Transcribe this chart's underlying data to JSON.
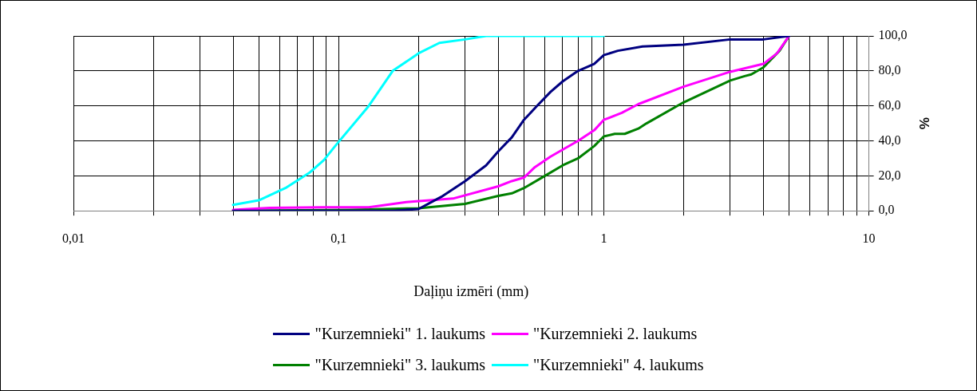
{
  "chart_data": {
    "type": "line",
    "xlabel": "Daļiņu izmēri (mm)",
    "ylabel": "%",
    "log": "x",
    "grid": true,
    "legend": "bottom",
    "marker": "none",
    "line_style": "solid",
    "xlim": [
      0.01,
      10
    ],
    "xticks": [
      {
        "value": 0.01,
        "label": "0,01"
      },
      {
        "value": 0.02,
        "label": null
      },
      {
        "value": 0.03,
        "label": null
      },
      {
        "value": 0.04,
        "label": null
      },
      {
        "value": 0.05,
        "label": null
      },
      {
        "value": 0.06,
        "label": null
      },
      {
        "value": 0.07,
        "label": null
      },
      {
        "value": 0.08,
        "label": null
      },
      {
        "value": 0.09,
        "label": null
      },
      {
        "value": 0.1,
        "label": "0,1"
      },
      {
        "value": 0.2,
        "label": null
      },
      {
        "value": 0.3,
        "label": null
      },
      {
        "value": 0.4,
        "label": null
      },
      {
        "value": 0.5,
        "label": null
      },
      {
        "value": 0.6,
        "label": null
      },
      {
        "value": 0.7,
        "label": null
      },
      {
        "value": 0.8,
        "label": null
      },
      {
        "value": 0.9,
        "label": null
      },
      1,
      {
        "value": 2,
        "label": null
      },
      {
        "value": 3,
        "label": null
      },
      {
        "value": 4,
        "label": null
      },
      {
        "value": 5,
        "label": null
      },
      {
        "value": 6,
        "label": null
      },
      {
        "value": 7,
        "label": null
      },
      {
        "value": 8,
        "label": null
      },
      {
        "value": 9,
        "label": null
      },
      10
    ],
    "ylim": [
      0,
      100
    ],
    "yticks": [
      {
        "value": 0,
        "label": "0,0"
      },
      {
        "value": 20,
        "label": "20,0"
      },
      {
        "value": 40,
        "label": "40,0"
      },
      {
        "value": 60,
        "label": "60,0"
      },
      {
        "value": 80,
        "label": "80,0"
      },
      {
        "value": 100,
        "label": "100,0"
      }
    ],
    "series": [
      {
        "name": "\"Kurzemnieki\" 1. laukums",
        "color": "#000080",
        "x": [
          0.04,
          0.1,
          0.16,
          0.2,
          0.244,
          0.3,
          0.36,
          0.4,
          0.45,
          0.5,
          0.56,
          0.63,
          0.7,
          0.8,
          0.92,
          1,
          1.13,
          1.4,
          2,
          3,
          4,
          5
        ],
        "values": [
          0,
          0,
          0,
          1,
          8,
          17,
          26,
          34,
          42,
          52,
          60,
          68,
          74,
          80,
          84,
          89,
          91.5,
          94,
          95,
          98,
          98,
          100
        ]
      },
      {
        "name": "\"Kurzemnieki 2. laukums",
        "color": "#ff00ff",
        "x": [
          0.04,
          0.055,
          0.088,
          0.13,
          0.18,
          0.27,
          0.4,
          0.45,
          0.5,
          0.55,
          0.63,
          0.7,
          0.8,
          0.92,
          1,
          1.17,
          1.35,
          2,
          3,
          4,
          4.5,
          5
        ],
        "values": [
          0.5,
          1.7,
          2,
          2,
          5,
          7,
          14,
          17,
          19,
          25,
          31,
          35,
          40,
          46,
          52,
          56,
          61,
          71,
          79.5,
          84,
          90,
          100
        ]
      },
      {
        "name": "\"Kurzemnieki\" 3. laukums",
        "color": "#008000",
        "x": [
          0.04,
          0.11,
          0.2,
          0.3,
          0.4,
          0.45,
          0.5,
          0.6,
          0.7,
          0.8,
          0.92,
          1,
          1.1,
          1.2,
          1.35,
          1.45,
          2,
          3,
          3.4,
          3.6,
          4,
          4.6,
          5
        ],
        "values": [
          0,
          0.5,
          1.5,
          4,
          8.5,
          10,
          13,
          20,
          26,
          30,
          37,
          42.5,
          44,
          44,
          47,
          50,
          62,
          74.5,
          77,
          78,
          82,
          91.5,
          100
        ]
      },
      {
        "name": "\"Kurzemnieki\" 4. laukums",
        "color": "#00ffff",
        "x": [
          0.04,
          0.05,
          0.063,
          0.078,
          0.088,
          0.097,
          0.13,
          0.16,
          0.2,
          0.24,
          0.3,
          0.36,
          0.4,
          1
        ],
        "values": [
          3.4,
          6,
          13,
          22,
          29,
          37,
          60,
          80,
          90,
          96,
          98,
          100,
          100,
          100
        ]
      }
    ]
  }
}
